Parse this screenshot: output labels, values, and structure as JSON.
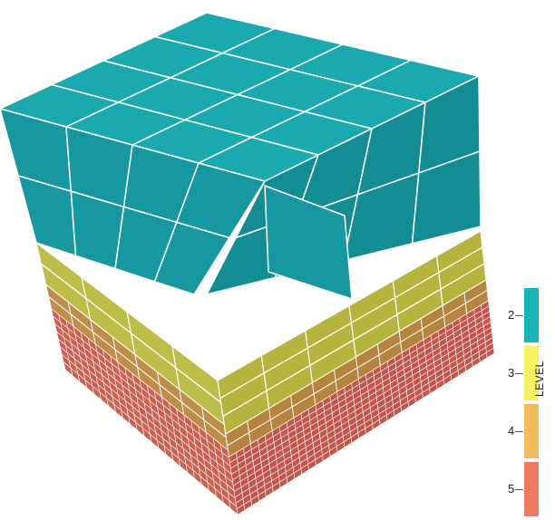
{
  "legend": {
    "title": "LEVEL",
    "levels": [
      {
        "label": "2",
        "color": "#18B5B8"
      },
      {
        "label": "3",
        "color": "#F4F261"
      },
      {
        "label": "4",
        "color": "#F0BC5E"
      },
      {
        "label": "5",
        "color": "#EE7A62"
      }
    ]
  },
  "cube": {
    "face_colors": {
      "level2": {
        "top": "#1AA9AE",
        "left": "#1797A0",
        "right": "#148C94"
      },
      "level3": {
        "top": "#C8C95A",
        "left": "#BDBD4A",
        "right": "#B4B43E"
      },
      "level4": {
        "top": "#C89A55",
        "left": "#BD8F4A",
        "right": "#B5853F"
      },
      "level5": {
        "top": "#D06A55",
        "left": "#C96050",
        "right": "#C2564A"
      }
    },
    "grid_line_color": "#FFFFFF"
  }
}
